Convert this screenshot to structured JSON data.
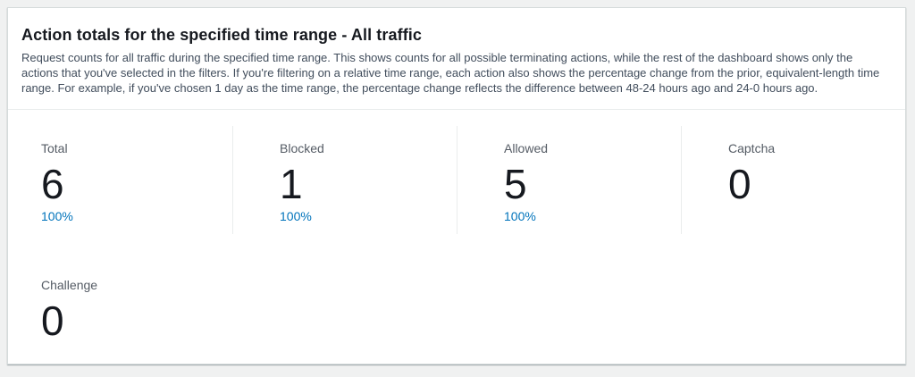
{
  "panel": {
    "title": "Action totals for the specified time range - All traffic",
    "description": "Request counts for all traffic during the specified time range. This shows counts for all possible terminating actions, while the rest of the dashboard shows only the actions that you've selected in the filters. If you're filtering on a relative time range, each action also shows the percentage change from the prior, equivalent-length time range. For example, if you've chosen 1 day as the time range, the percentage change reflects the difference between 48-24 hours ago and 24-0 hours ago."
  },
  "metrics": [
    {
      "label": "Total",
      "value": "6",
      "change": "100%"
    },
    {
      "label": "Blocked",
      "value": "1",
      "change": "100%"
    },
    {
      "label": "Allowed",
      "value": "5",
      "change": "100%"
    },
    {
      "label": "Captcha",
      "value": "0"
    },
    {
      "label": "Challenge",
      "value": "0"
    }
  ],
  "colors": {
    "accent_blue": "#0073bb",
    "page_background": "#f0f1f1",
    "card_background": "#ffffff",
    "card_border": "#d5dbdb",
    "divider": "#eaeded",
    "title_text": "#16191f",
    "label_text": "#545b64"
  }
}
